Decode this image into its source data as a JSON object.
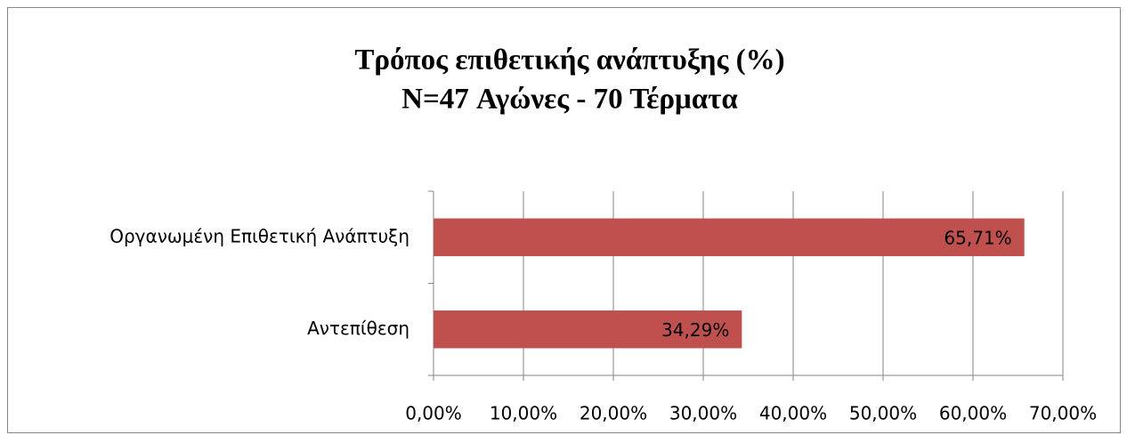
{
  "chart_data": {
    "type": "bar",
    "orientation": "horizontal",
    "title": "Τρόπος επιθετικής ανάπτυξης (%)",
    "subtitle": "N=47 Αγώνες - 70 Τέρματα",
    "categories": [
      "Οργανωμένη Επιθετική Ανάπτυξη",
      "Αντεπίθεση"
    ],
    "values": [
      65.71,
      34.29
    ],
    "value_labels": [
      "65,71%",
      "34,29%"
    ],
    "color": "#c0504d",
    "xlim": [
      0,
      70
    ],
    "xticks": [
      {
        "value": 0,
        "label": "0,00%"
      },
      {
        "value": 10,
        "label": "10,00%"
      },
      {
        "value": 20,
        "label": "20,00%"
      },
      {
        "value": 30,
        "label": "30,00%"
      },
      {
        "value": 40,
        "label": "40,00%"
      },
      {
        "value": 50,
        "label": "50,00%"
      },
      {
        "value": 60,
        "label": "60,00%"
      },
      {
        "value": 70,
        "label": "70,00%"
      }
    ],
    "grid": true
  }
}
